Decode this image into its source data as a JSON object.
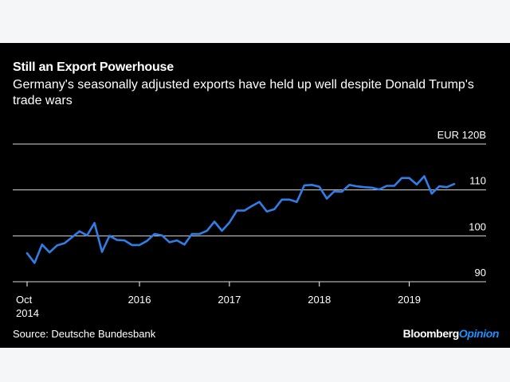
{
  "title": "Still an Export Powerhouse",
  "subtitle": "Germany's seasonally adjusted exports have held up well despite Donald Trump's trade wars",
  "source": "Source: Deutsche Bundesbank",
  "brand": {
    "name": "Bloomberg",
    "suffix": "Opinion"
  },
  "colors": {
    "background": "#000000",
    "line": "#2f7ee8",
    "text": "#ffffff",
    "grid": "#ffffff",
    "brand_accent": "#1e8fff"
  },
  "chart_data": {
    "type": "line",
    "title": "Still an Export Powerhouse",
    "ylabel": "",
    "xlabel": "",
    "ylim": [
      90,
      120
    ],
    "yticks": [
      90,
      100,
      110,
      120
    ],
    "ytick_labels": [
      "90",
      "100",
      "110",
      "EUR 120B"
    ],
    "xticks": [
      "2014-10",
      "2016-01",
      "2017-01",
      "2018-01",
      "2019-01"
    ],
    "xtick_labels": [
      "Oct 2014",
      "2016",
      "2017",
      "2018",
      "2019"
    ],
    "grid": true,
    "legend": "none",
    "series": [
      {
        "x": [
          "2014-10",
          "2014-11",
          "2014-12",
          "2015-01",
          "2015-02",
          "2015-03",
          "2015-04",
          "2015-05",
          "2015-06",
          "2015-07",
          "2015-08",
          "2015-09",
          "2015-10",
          "2015-11",
          "2015-12",
          "2016-01",
          "2016-02",
          "2016-03",
          "2016-04",
          "2016-05",
          "2016-06",
          "2016-07",
          "2016-08",
          "2016-09",
          "2016-10",
          "2016-11",
          "2016-12",
          "2017-01",
          "2017-02",
          "2017-03",
          "2017-04",
          "2017-05",
          "2017-06",
          "2017-07",
          "2017-08",
          "2017-09",
          "2017-10",
          "2017-11",
          "2017-12",
          "2018-01",
          "2018-02",
          "2018-03",
          "2018-04",
          "2018-05",
          "2018-06",
          "2018-07",
          "2018-08",
          "2018-09",
          "2018-10",
          "2018-11",
          "2018-12",
          "2019-01",
          "2019-02",
          "2019-03",
          "2019-04",
          "2019-05",
          "2019-06",
          "2019-07"
        ],
        "values": [
          96.2,
          94.1,
          98.1,
          96.4,
          97.9,
          98.4,
          99.7,
          101.0,
          100.1,
          102.8,
          96.5,
          100.0,
          99.1,
          99.0,
          98.0,
          98.0,
          98.9,
          100.4,
          100.1,
          98.6,
          99.0,
          98.1,
          100.4,
          100.4,
          101.1,
          103.1,
          101.1,
          102.9,
          105.5,
          105.5,
          106.5,
          107.4,
          105.3,
          105.8,
          107.9,
          107.9,
          107.4,
          111.0,
          111.1,
          110.7,
          108.1,
          109.7,
          109.6,
          111.1,
          110.8,
          110.6,
          110.5,
          110.1,
          110.9,
          110.9,
          112.6,
          112.6,
          111.2,
          113.0,
          109.2,
          110.8,
          110.6,
          111.3
        ]
      }
    ]
  }
}
